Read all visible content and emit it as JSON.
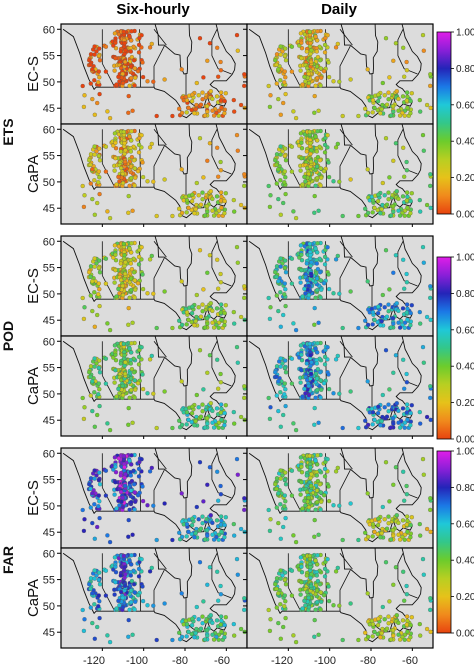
{
  "columns": [
    "Six-hourly",
    "Daily"
  ],
  "metrics": [
    "ETS",
    "POD",
    "FAR"
  ],
  "datasets": [
    "EC-S",
    "CaPA"
  ],
  "lat_ticks": [
    "60",
    "55",
    "50",
    "45"
  ],
  "lon_ticks": [
    "-120",
    "-100",
    "-80",
    "-60"
  ],
  "colorbar_ticks": [
    "1.00",
    "0.80",
    "0.60",
    "0.40",
    "0.20",
    "0.00"
  ],
  "colors": {
    "map_background": "#dcdcdc",
    "colorbar_stops": [
      "#e8430f",
      "#f08a1c",
      "#e6c21a",
      "#b8cf22",
      "#6ccc2c",
      "#33c78a",
      "#1fc8d8",
      "#1b78e6",
      "#2424b8",
      "#8a1fd8",
      "#e01ee8"
    ]
  },
  "chart_data": {
    "type": "map-scatter",
    "title": "",
    "panels": [
      {
        "metric": "ETS",
        "dataset": "EC-S",
        "timescale": "Six-hourly",
        "typical_value": 0.05
      },
      {
        "metric": "ETS",
        "dataset": "EC-S",
        "timescale": "Daily",
        "typical_value": 0.25
      },
      {
        "metric": "ETS",
        "dataset": "CaPA",
        "timescale": "Six-hourly",
        "typical_value": 0.2
      },
      {
        "metric": "ETS",
        "dataset": "CaPA",
        "timescale": "Daily",
        "typical_value": 0.35
      },
      {
        "metric": "POD",
        "dataset": "EC-S",
        "timescale": "Six-hourly",
        "typical_value": 0.3
      },
      {
        "metric": "POD",
        "dataset": "EC-S",
        "timescale": "Daily",
        "typical_value": 0.55
      },
      {
        "metric": "POD",
        "dataset": "CaPA",
        "timescale": "Six-hourly",
        "typical_value": 0.4
      },
      {
        "metric": "POD",
        "dataset": "CaPA",
        "timescale": "Daily",
        "typical_value": 0.6
      },
      {
        "metric": "FAR",
        "dataset": "EC-S",
        "timescale": "Six-hourly",
        "typical_value": 0.75
      },
      {
        "metric": "FAR",
        "dataset": "EC-S",
        "timescale": "Daily",
        "typical_value": 0.45
      },
      {
        "metric": "FAR",
        "dataset": "CaPA",
        "timescale": "Six-hourly",
        "typical_value": 0.65
      },
      {
        "metric": "FAR",
        "dataset": "CaPA",
        "timescale": "Daily",
        "typical_value": 0.45
      }
    ],
    "xlim": [
      -140,
      -50
    ],
    "ylim": [
      42,
      61
    ],
    "colorbar_range": [
      0,
      1
    ]
  }
}
